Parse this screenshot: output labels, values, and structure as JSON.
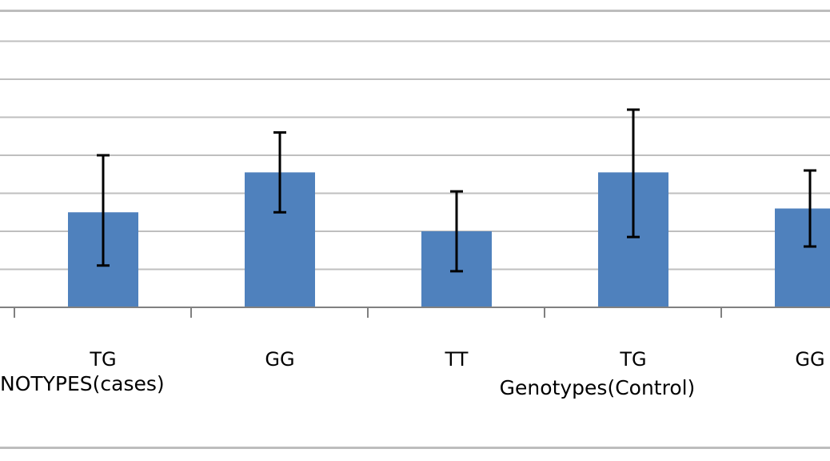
{
  "chart_data": {
    "type": "bar",
    "categories": [
      "TG",
      "GG",
      "TT",
      "TG",
      "GG"
    ],
    "groups": [
      {
        "label": "NOTYPES(cases)",
        "categories": [
          "TG",
          "GG"
        ]
      },
      {
        "label": "Genotypes(Control)",
        "categories": [
          "TT",
          "TG",
          "GG"
        ]
      }
    ],
    "series": [
      {
        "values": [
          2.5,
          3.55,
          2.0,
          3.55,
          2.6
        ],
        "error_low": [
          1.1,
          2.5,
          0.95,
          1.85,
          1.6
        ],
        "error_high": [
          4.0,
          4.6,
          3.05,
          5.2,
          3.6
        ]
      }
    ],
    "ylim": [
      0,
      7.5
    ],
    "grid": true,
    "colors": {
      "bar": "#4f81bd",
      "grid": "#bfbfbf",
      "axis": "#808080",
      "error": "#000000"
    }
  }
}
